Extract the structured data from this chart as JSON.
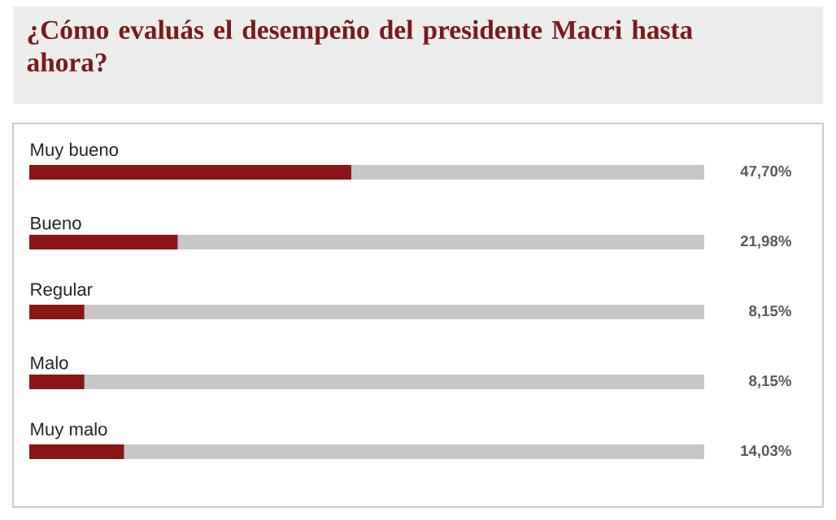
{
  "chart_data": {
    "type": "bar",
    "orientation": "horizontal",
    "title": "¿Cómo evaluás el desempeño del presidente Macri hasta ahora?",
    "categories": [
      "Muy bueno",
      "Bueno",
      "Regular",
      "Malo",
      "Muy malo"
    ],
    "values": [
      47.7,
      21.98,
      8.15,
      8.15,
      14.03
    ],
    "value_labels": [
      "47,70%",
      "21,98%",
      "8,15%",
      "8,15%",
      "14,03%"
    ],
    "color": "#8b1516",
    "xlim": [
      0,
      100
    ]
  }
}
